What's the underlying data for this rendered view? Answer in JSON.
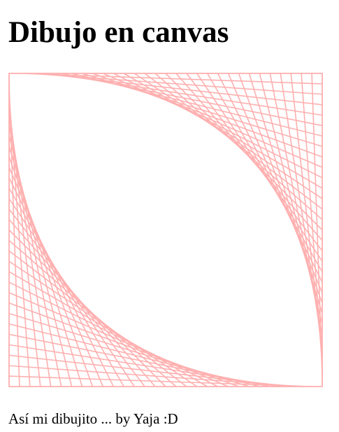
{
  "page": {
    "title": "Dibujo en canvas",
    "caption": "Así mi dibujito ... by Yaja :D"
  },
  "drawing": {
    "stroke_color": "#ffb0b0",
    "line_count": 30
  }
}
